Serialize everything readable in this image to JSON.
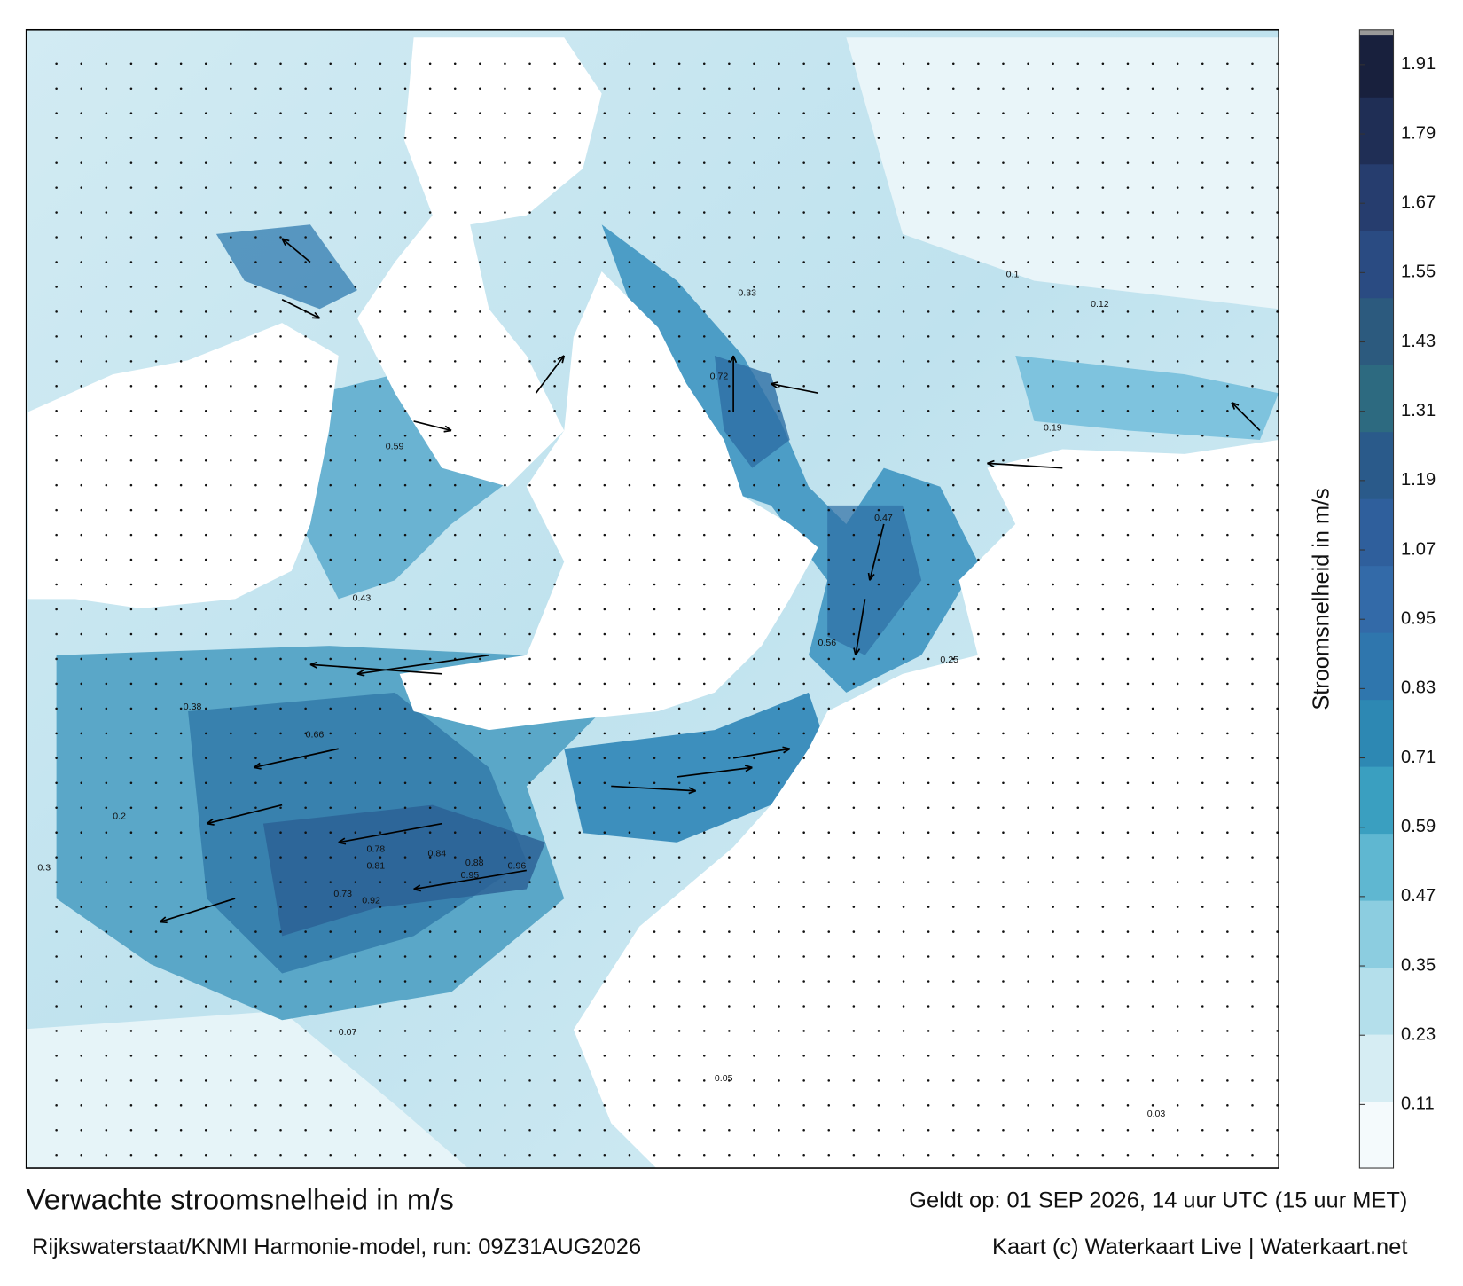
{
  "map": {
    "title": "Verwachte stroomsnelheid in m/s",
    "subtitle": "Rijkswaterstaat/KNMI Harmonie-model, run: 09Z31AUG2026",
    "valid_time": "Geldt op: 01 SEP 2026, 14 uur UTC (15 uur MET)",
    "credit": "Kaart (c) Waterkaart Live | Waterkaart.net",
    "colorbar": {
      "label": "Stroomsnelheid in m/s",
      "lim": [
        0,
        1.97
      ],
      "ticks": [
        0.11,
        0.23,
        0.35,
        0.47,
        0.59,
        0.71,
        0.83,
        0.95,
        1.07,
        1.19,
        1.31,
        1.43,
        1.55,
        1.67,
        1.79,
        1.91
      ],
      "colors": [
        "#f4fafc",
        "#d6edf3",
        "#b4dfeb",
        "#8ccde0",
        "#5fb7d1",
        "#3a9fc0",
        "#2d88b3",
        "#2f76ad",
        "#336aa8",
        "#2f5f9c",
        "#2a5a8a",
        "#2d6a80",
        "#2c5a7e",
        "#2a4b82",
        "#263d6e",
        "#1f2e55",
        "#18203d"
      ]
    },
    "point_labels": [
      "0.96",
      "0.95",
      "0.88",
      "0.84",
      "0.78",
      "0.92",
      "0.73",
      "0.81",
      "0.66",
      "0.72",
      "0.59",
      "0.56",
      "0.47",
      "0.43",
      "0.38",
      "0.33",
      "0.25",
      "0.19",
      "0.12",
      "0.07",
      "0.05",
      "0.03",
      "0.1",
      "0.2",
      "0.3"
    ]
  }
}
